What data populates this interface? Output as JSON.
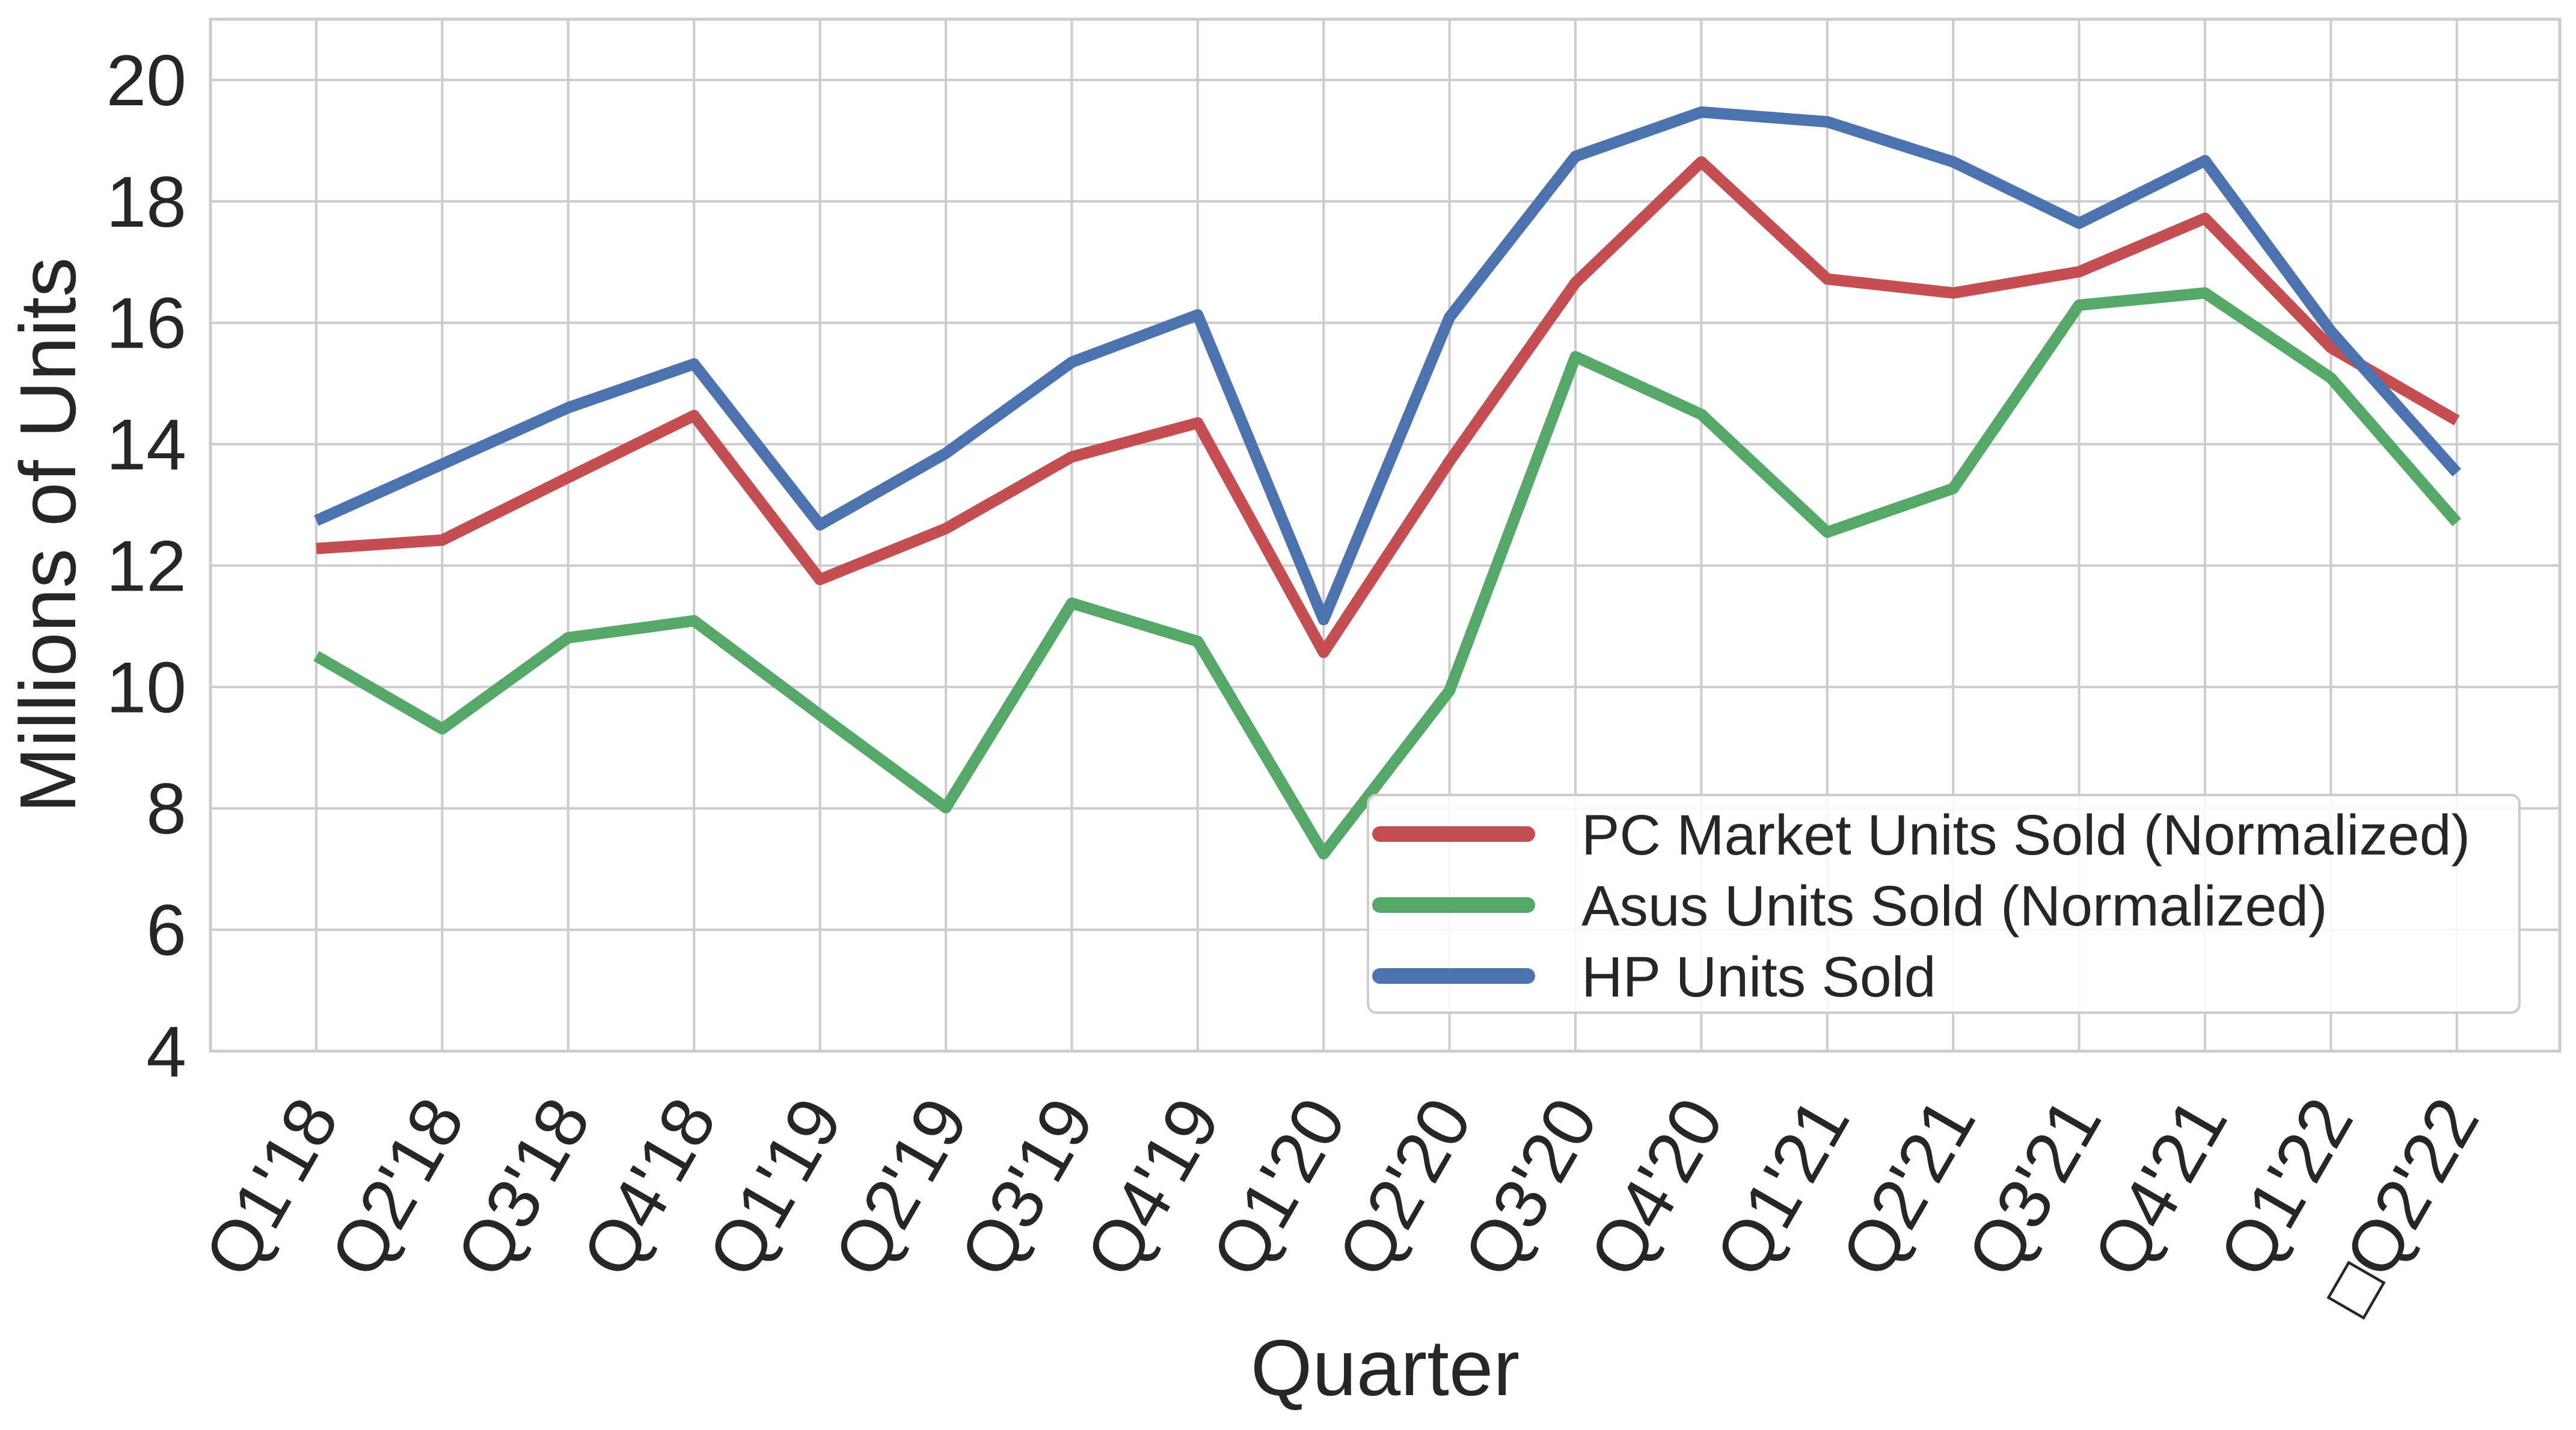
{
  "chart_data": {
    "type": "line",
    "title": "",
    "xlabel": "Quarter",
    "ylabel": "Millions of Units",
    "ylim": [
      4,
      21
    ],
    "yticks": [
      4,
      6,
      8,
      10,
      12,
      14,
      16,
      18,
      20
    ],
    "categories": [
      "Q1'18",
      "Q2'18",
      "Q3'18",
      "Q4'18",
      "Q1'19",
      "Q2'19",
      "Q3'19",
      "Q4'19",
      "Q1'20",
      "Q2'20",
      "Q3'20",
      "Q4'20",
      "Q1'21",
      "Q2'21",
      "Q3'21",
      "Q4'21",
      "Q1'22",
      "□Q2'22"
    ],
    "grid": true,
    "legend_position": "lower-right",
    "series": [
      {
        "name": "PC Market Units Sold (Normalized)",
        "color": "#c44e52",
        "values": [
          12.28,
          12.42,
          13.45,
          14.47,
          11.77,
          12.61,
          13.79,
          14.35,
          10.57,
          13.72,
          16.66,
          18.65,
          16.72,
          16.49,
          16.84,
          17.72,
          15.59,
          14.39
        ]
      },
      {
        "name": "Asus Units Sold (Normalized)",
        "color": "#55a868",
        "values": [
          10.51,
          9.31,
          10.81,
          11.09,
          9.54,
          8.01,
          11.38,
          10.75,
          7.25,
          9.94,
          15.44,
          14.49,
          12.55,
          13.27,
          16.29,
          16.49,
          15.09,
          12.71
        ]
      },
      {
        "name": "HP Units Sold",
        "color": "#4c72b0",
        "values": [
          12.74,
          13.67,
          14.6,
          15.32,
          12.67,
          13.85,
          15.35,
          16.13,
          11.11,
          16.09,
          18.74,
          19.47,
          19.31,
          18.65,
          17.64,
          18.67,
          15.86,
          13.53
        ]
      }
    ]
  }
}
